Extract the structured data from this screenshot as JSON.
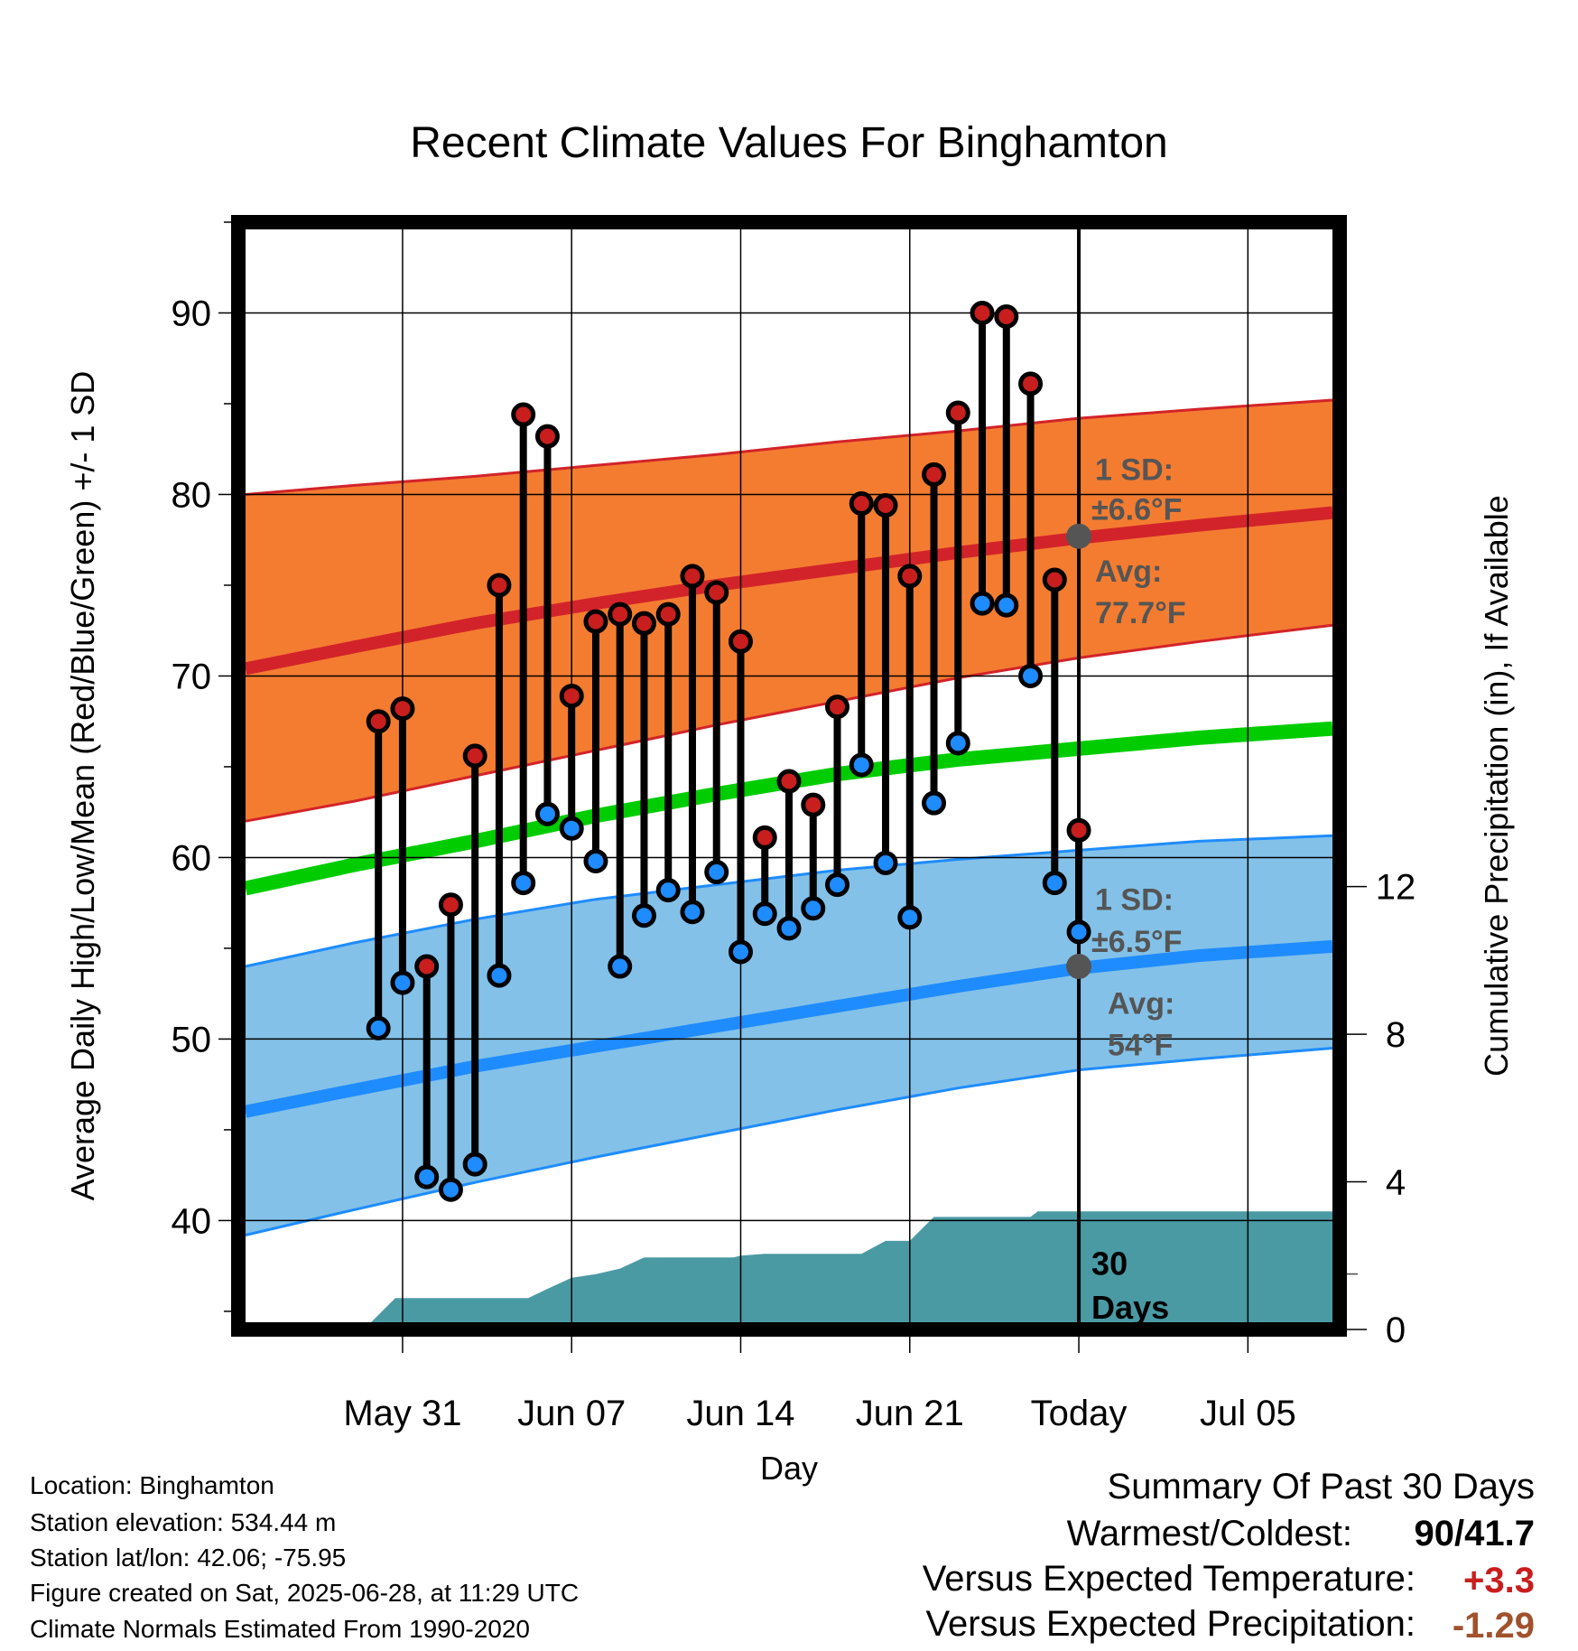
{
  "chart_data": {
    "type": "line",
    "title": "Recent Climate Values For Binghamton",
    "xlabel": "Day",
    "ylabel": "Average Daily High/Low/Mean (Red/Blue/Green) +/- 1 SD",
    "y2label": "Cumulative Precipitation (in), If Available",
    "ylim": [
      34,
      95
    ],
    "y2lim": [
      0,
      30
    ],
    "x_range_days": [
      -34.8,
      10.8
    ],
    "x_ticks": [
      {
        "day": -28,
        "label": "May 31"
      },
      {
        "day": -21,
        "label": "Jun 07"
      },
      {
        "day": -14,
        "label": "Jun 14"
      },
      {
        "day": -7,
        "label": "Jun 21"
      },
      {
        "day": 0,
        "label": "Today"
      },
      {
        "day": 7,
        "label": "Jul 05"
      }
    ],
    "y_ticks": [
      40,
      50,
      60,
      70,
      80,
      90
    ],
    "y2_ticks": [
      0,
      4,
      8,
      12
    ],
    "grid": true,
    "today_day": 0,
    "normals": {
      "days": [
        -34.5,
        -30,
        -25,
        -20,
        -15,
        -10,
        -5,
        0,
        5,
        10.5
      ],
      "high_mean": [
        70.4,
        71.6,
        72.9,
        74.0,
        75.0,
        75.9,
        76.8,
        77.6,
        78.3,
        79.0
      ],
      "high_upper": [
        80.0,
        80.5,
        81.0,
        81.6,
        82.2,
        82.9,
        83.5,
        84.2,
        84.7,
        85.2
      ],
      "high_lower": [
        62.0,
        63.1,
        64.5,
        65.9,
        67.3,
        68.6,
        69.9,
        71.0,
        71.9,
        72.8
      ],
      "mean": [
        58.3,
        59.6,
        60.9,
        62.3,
        63.5,
        64.6,
        65.4,
        66.0,
        66.6,
        67.1
      ],
      "low_mean": [
        46.0,
        47.2,
        48.5,
        49.6,
        50.7,
        51.8,
        52.9,
        53.9,
        54.6,
        55.1
      ],
      "low_upper": [
        54.0,
        55.3,
        56.6,
        57.7,
        58.5,
        59.3,
        59.9,
        60.4,
        60.9,
        61.2
      ],
      "low_lower": [
        39.2,
        40.6,
        42.1,
        43.5,
        44.8,
        46.1,
        47.3,
        48.3,
        48.9,
        49.5
      ]
    },
    "series": [
      {
        "name": "High",
        "color": "#c81e1e",
        "values": [
          67.5,
          68.2,
          54.0,
          57.4,
          65.6,
          75.0,
          84.4,
          83.2,
          68.9,
          73.0,
          73.4,
          72.9,
          73.4,
          75.5,
          74.6,
          71.9,
          61.1,
          64.2,
          62.9,
          68.3,
          79.5,
          79.4,
          75.5,
          81.1,
          84.5,
          90.0,
          89.8,
          86.1,
          75.3,
          61.5
        ]
      },
      {
        "name": "Low",
        "color": "#1e8cff",
        "values": [
          50.6,
          53.1,
          42.4,
          41.7,
          43.1,
          53.5,
          58.6,
          62.4,
          61.6,
          59.8,
          54.0,
          56.8,
          58.2,
          57.0,
          59.2,
          54.8,
          56.9,
          56.1,
          57.2,
          58.5,
          65.1,
          59.7,
          56.7,
          63.0,
          66.3,
          74.0,
          73.9,
          70.0,
          58.6,
          55.9
        ]
      }
    ],
    "obs_days": [
      -29,
      -28,
      -27,
      -26,
      -25,
      -24,
      -23,
      -22,
      -21,
      -20,
      -19,
      -18,
      -17,
      -16,
      -15,
      -14,
      -13,
      -12,
      -11,
      -10,
      -9,
      -8,
      -7,
      -6,
      -5,
      -4,
      -3,
      -2,
      -1,
      0
    ],
    "precip": {
      "days": [
        -30.5,
        -29.6,
        -28.3,
        -26,
        -24,
        -22.8,
        -22,
        -21,
        -20,
        -19,
        -18,
        -17,
        -16,
        -15,
        -14.3,
        -14,
        -13,
        -12,
        -11,
        -10,
        -9,
        -8,
        -7.5,
        -7,
        -6,
        -5,
        -4.8,
        -4,
        -3,
        -2,
        -1.7,
        -1,
        0,
        5,
        10.5
      ],
      "values": [
        0,
        0,
        0.85,
        0.85,
        0.85,
        0.85,
        1.1,
        1.4,
        1.5,
        1.65,
        1.95,
        1.95,
        1.95,
        1.95,
        1.95,
        2.0,
        2.05,
        2.05,
        2.05,
        2.05,
        2.05,
        2.4,
        2.4,
        2.4,
        3.05,
        3.05,
        3.05,
        3.05,
        3.05,
        3.05,
        3.2,
        3.2,
        3.2,
        3.2,
        3.2
      ],
      "color": "#4a9aa4"
    },
    "annotations": {
      "high_sd_label": "1 SD:",
      "high_sd_value": "±6.6°F",
      "high_avg_label": "Avg:",
      "high_avg_value": "77.7°F",
      "high_avg": 77.7,
      "low_sd_label": "1 SD:",
      "low_sd_value": "±6.5°F",
      "low_avg_label": "Avg:",
      "low_avg_value": "54°F",
      "low_avg": 54.0,
      "days_number": "30",
      "days_word": "Days"
    },
    "colors": {
      "high_band": "#f47c30",
      "high_mean": "#d2232a",
      "mean": "#00cc00",
      "low_band": "#83c1e8",
      "low_mean": "#1e8cff",
      "band_edge_high": "#d2232a",
      "band_edge_low": "#1e8cff",
      "marker_high": "#c81e1e",
      "marker_low": "#1e8cff",
      "today_dot": "#555555"
    }
  },
  "footer": {
    "location": "Location: Binghamton",
    "elevation": "Station elevation: 534.44 m",
    "latlon": "Station lat/lon: 42.06; -75.95",
    "created": "Figure created on Sat, 2025-06-28, at 11:29 UTC",
    "normals": "Climate Normals Estimated From 1990-2020"
  },
  "summary": {
    "title": "Summary Of Past 30 Days",
    "warmest_label": "Warmest/Coldest:",
    "warmest_high": "90",
    "warmest_sep": "/",
    "coldest_low": "41.7",
    "temp_label": "Versus Expected Temperature:",
    "temp_value": "+3.3",
    "temp_color": "#c81e1e",
    "precip_label": "Versus Expected Precipitation:",
    "precip_value": "-1.29",
    "precip_color": "#a0522d"
  }
}
